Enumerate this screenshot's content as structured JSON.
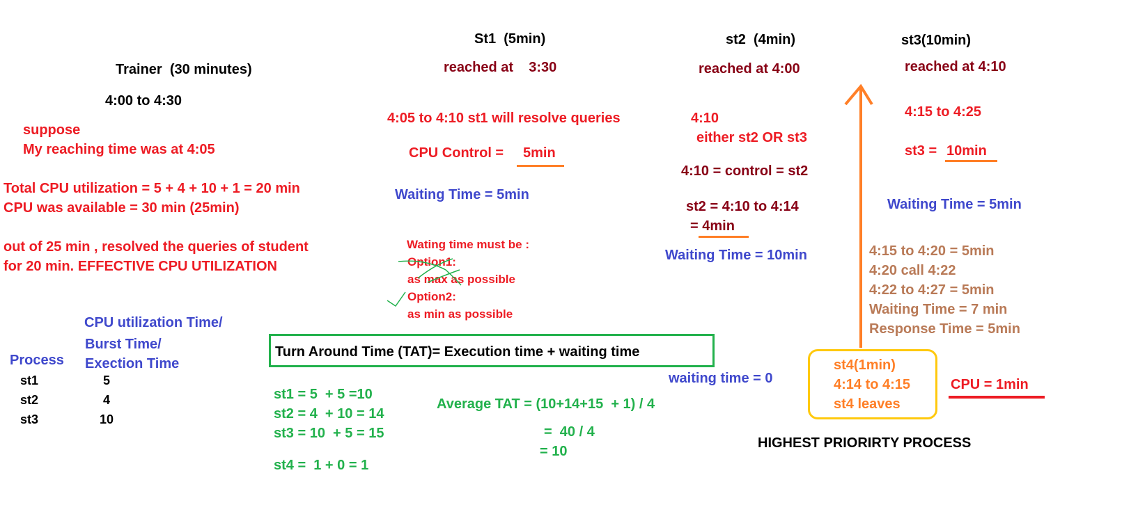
{
  "trainer": {
    "title": "Trainer  (30 minutes)",
    "time": "4:00 to 4:30",
    "suppose": "suppose",
    "reaching": "My reaching time was at 4:05",
    "total_cpu": "Total CPU utilization = 5 + 4 + 10 + 1 = 20 min",
    "cpu_available": "CPU was available = 30 min (25min)",
    "effective_1": "out of 25 min , resolved the queries of student",
    "effective_2": "for 20 min. EFFECTIVE CPU UTILIZATION"
  },
  "process_table": {
    "col_process": "Process",
    "col_time_1": "CPU utilization Time/",
    "col_time_2": "Burst Time/",
    "col_time_3": "Exection Time",
    "rows": [
      {
        "name": "st1",
        "time": "5"
      },
      {
        "name": "st2",
        "time": "4"
      },
      {
        "name": "st3",
        "time": "10"
      }
    ]
  },
  "st1": {
    "title": "St1  (5min)",
    "reached": "reached at    3:30",
    "resolve": "4:05 to 4:10 st1 will resolve queries",
    "cpu_control_label": "CPU Control = ",
    "cpu_control_value": "5min",
    "waiting": "Waiting Time = 5min",
    "note_title": "Wating time must be :",
    "note_opt1": "Option1:",
    "note_opt1_text": "as max as possible",
    "note_opt2": "Option2:",
    "note_opt2_text": "as min as possible"
  },
  "st2": {
    "title": "st2  (4min)",
    "reached": "reached at 4:00",
    "time": "4:10",
    "either": "either st2 OR st3",
    "control": "4:10 = control = st2",
    "range": "st2 = 4:10 to 4:14",
    "eq_value": "= 4min",
    "waiting": "Waiting Time = 10min",
    "st4_waiting": "waiting time = 0"
  },
  "st3": {
    "title": "st3(10min)",
    "reached": "reached at 4:10",
    "range": "4:15 to 4:25",
    "cpu_label": "st3 = ",
    "cpu_value": "10min",
    "waiting": "Waiting Time = 5min",
    "calc": [
      "4:15 to 4:20 = 5min",
      "4:20 call 4:22",
      "4:22 to 4:27 = 5min",
      "Waiting Time = 7 min",
      "Response Time = 5min"
    ]
  },
  "st4": {
    "lines": [
      "st4(1min)",
      "4:14 to 4:15",
      "st4 leaves"
    ],
    "cpu": "CPU = 1min",
    "caption": "HIGHEST PRIORIRTY PROCESS"
  },
  "tat": {
    "formula": "Turn Around Time (TAT)= Execution time + waiting time",
    "rows": [
      "st1 = 5  + 5 =10",
      "st2 = 4  + 10 = 14",
      "st3 = 10  + 5 = 15",
      "st4 =  1 + 0 = 1"
    ],
    "average": "Average TAT = (10+14+15  + 1) / 4",
    "avg_step1": "=  40 / 4",
    "avg_step2": "= 10"
  },
  "colors": {
    "black": "#000000",
    "red": "#ed1c24",
    "dark_red": "#880015",
    "blue": "#3f48cc",
    "green": "#22b14c",
    "orange": "#ff7f27",
    "brown": "#b97a57",
    "yellow_box": "#ffc90e"
  }
}
